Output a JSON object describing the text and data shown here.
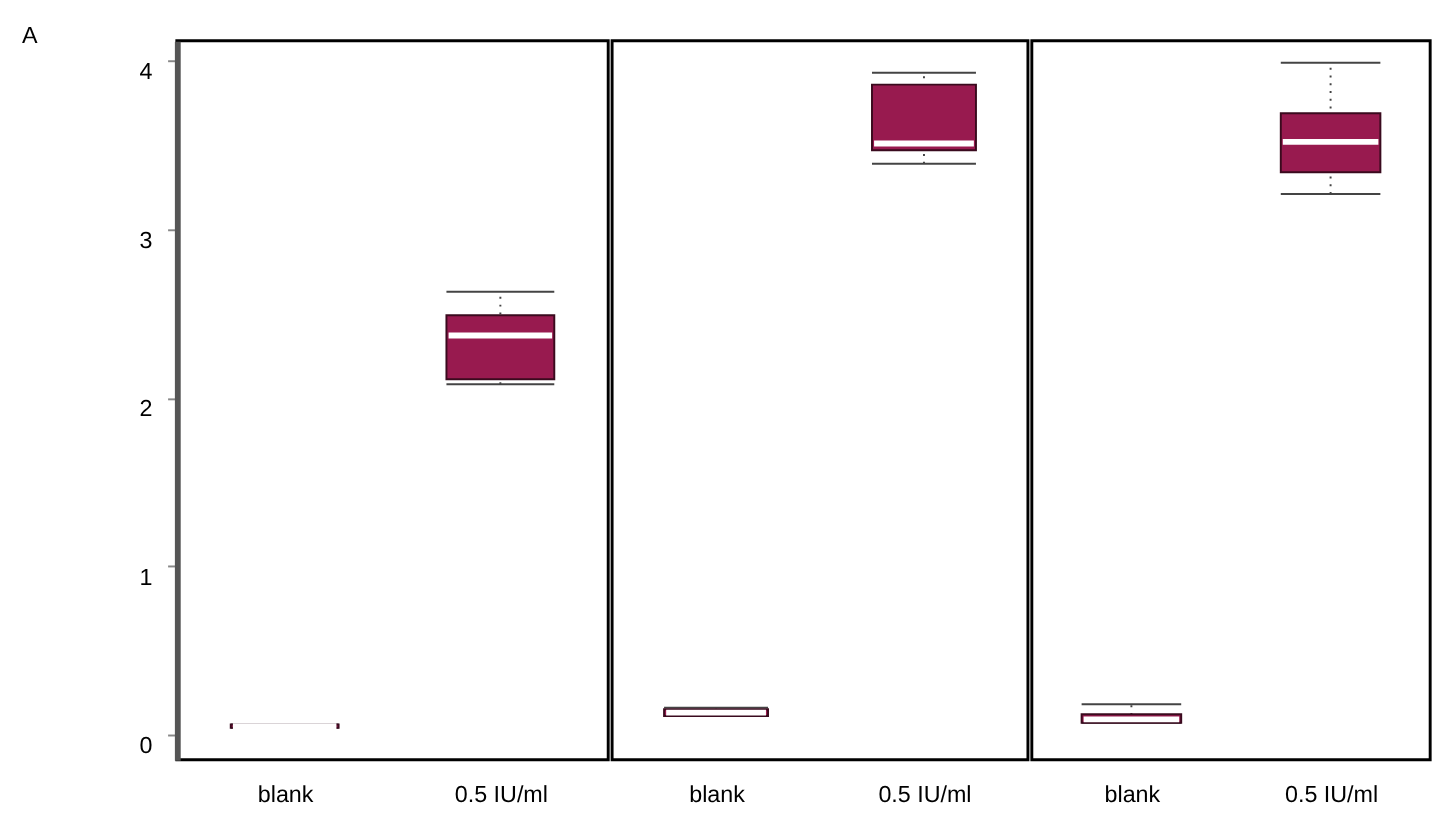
{
  "chart_data": [
    {
      "type": "box",
      "title": "A",
      "categories": [
        "blank",
        "0.5 IU/ml"
      ],
      "color": "#981a4f",
      "ylim": [
        -0.15,
        4.12
      ],
      "yticks": [
        0,
        1,
        2,
        3,
        4
      ],
      "boxes": [
        {
          "low": 0.04,
          "q1": 0.04,
          "median": 0.05,
          "q3": 0.06,
          "high": 0.06
        },
        {
          "low": 2.08,
          "q1": 2.11,
          "median": 2.37,
          "q3": 2.49,
          "high": 2.63
        }
      ]
    },
    {
      "type": "box",
      "categories": [
        "blank",
        "0.5 IU/ml"
      ],
      "color": "#981a4f",
      "ylim": [
        -0.15,
        4.12
      ],
      "yticks": [
        0,
        1,
        2,
        3,
        4
      ],
      "tick_labels": "x",
      "boxes": [
        {
          "low": 0.11,
          "q1": 0.11,
          "median": 0.13,
          "q3": 0.15,
          "high": 0.16
        },
        {
          "low": 3.39,
          "q1": 3.47,
          "median": 3.51,
          "q3": 3.86,
          "high": 3.93
        }
      ]
    },
    {
      "type": "box",
      "categories": [
        "blank",
        "0.5 IU/ml"
      ],
      "color": "#981a4f",
      "ylim": [
        -0.15,
        4.12
      ],
      "yticks": [
        0,
        1,
        2,
        3,
        4
      ],
      "tick_labels": "x",
      "boxes": [
        {
          "low": 0.07,
          "q1": 0.07,
          "median": 0.09,
          "q3": 0.12,
          "high": 0.18
        },
        {
          "low": 3.21,
          "q1": 3.34,
          "median": 3.52,
          "q3": 3.69,
          "high": 3.99
        }
      ]
    }
  ]
}
